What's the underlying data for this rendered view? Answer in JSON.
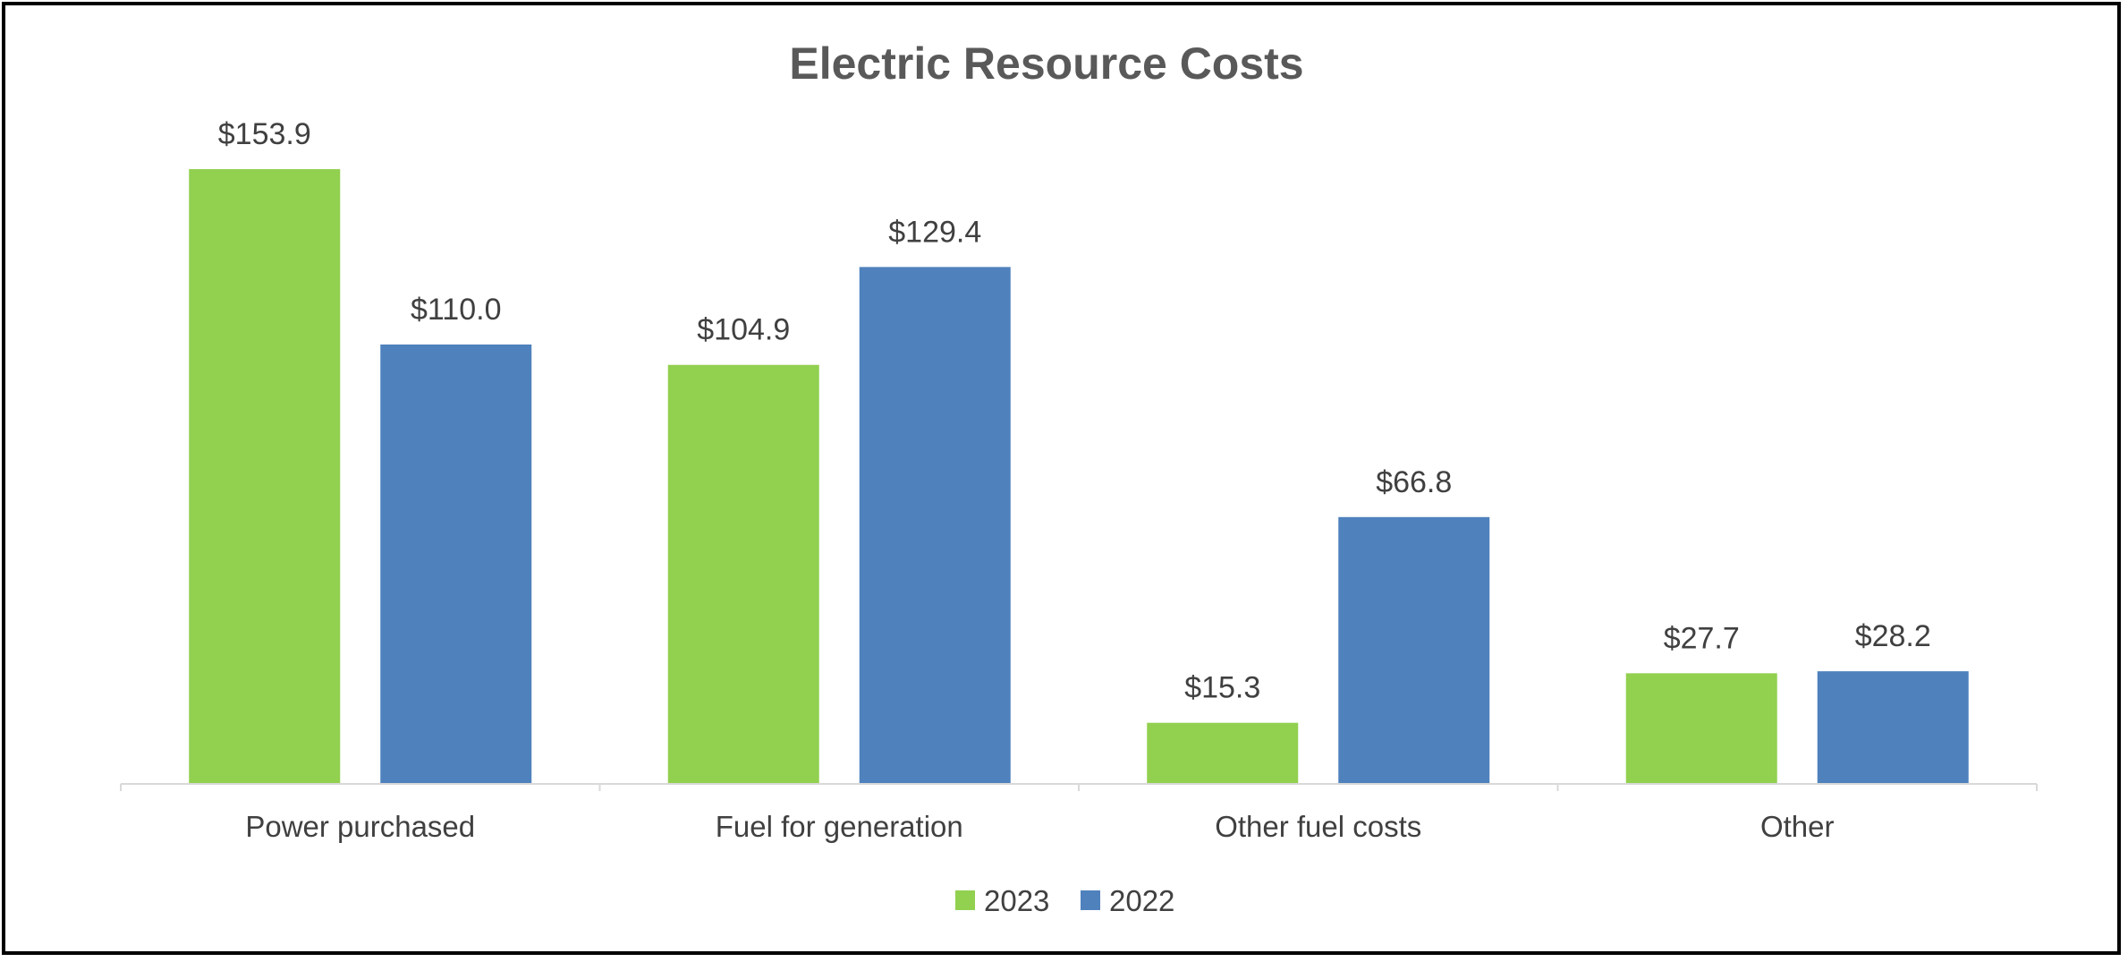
{
  "chart_data": {
    "type": "bar",
    "title": "Electric Resource Costs",
    "xlabel": "",
    "ylabel": "",
    "categories": [
      "Power purchased",
      "Fuel for generation",
      "Other fuel costs",
      "Other"
    ],
    "series": [
      {
        "name": "2023",
        "color": "#92D050",
        "values": [
          153.9,
          104.9,
          15.3,
          27.7
        ],
        "labels": [
          "$153.9",
          "$104.9",
          "$15.3",
          "$27.7"
        ]
      },
      {
        "name": "2022",
        "color": "#4F81BD",
        "values": [
          110.0,
          129.4,
          66.8,
          28.2
        ],
        "labels": [
          "$110.0",
          "$129.4",
          "$66.8",
          "$28.2"
        ]
      }
    ],
    "ylim": [
      0,
      153.9
    ],
    "grid": false,
    "legend_position": "bottom",
    "axis_color": "#D9D9D9"
  }
}
